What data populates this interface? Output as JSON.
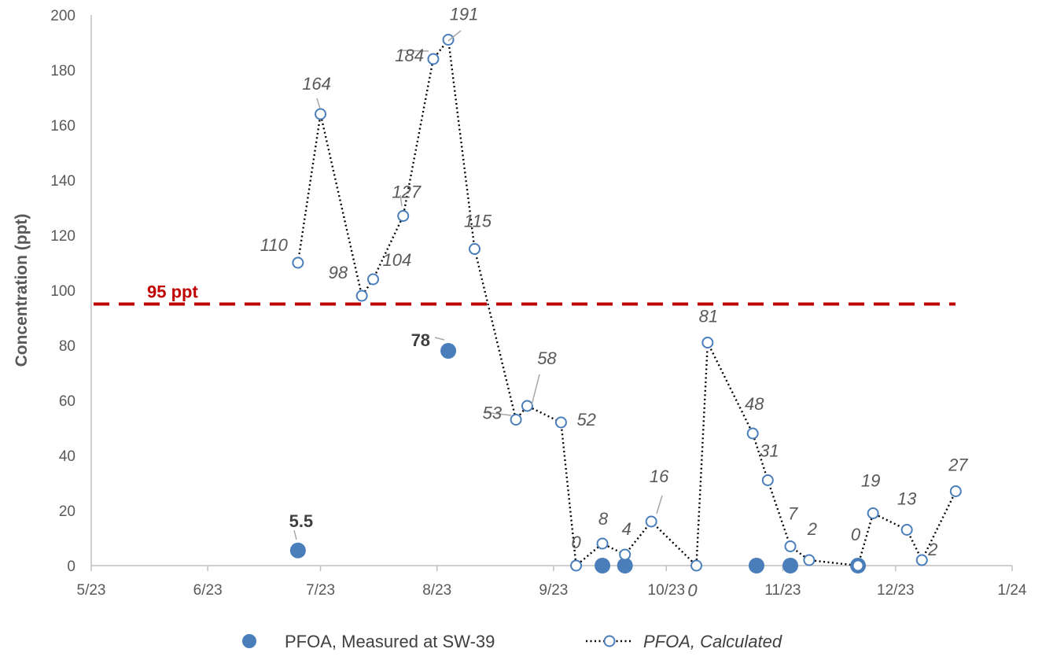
{
  "chart_data": {
    "type": "scatter",
    "ylabel": "Concentration (ppt)",
    "xlabel": "",
    "ylim": [
      0,
      200
    ],
    "yticks": [
      0,
      20,
      40,
      60,
      80,
      100,
      120,
      140,
      160,
      180,
      200
    ],
    "xlim": [
      "2023-05-01",
      "2024-01-01"
    ],
    "xticks": [
      {
        "date": "2023-05-01",
        "label": "5/23"
      },
      {
        "date": "2023-06-01",
        "label": "6/23"
      },
      {
        "date": "2023-07-01",
        "label": "7/23"
      },
      {
        "date": "2023-08-01",
        "label": "8/23"
      },
      {
        "date": "2023-09-01",
        "label": "9/23"
      },
      {
        "date": "2023-10-01",
        "label": "10/23"
      },
      {
        "date": "2023-11-01",
        "label": "11/23"
      },
      {
        "date": "2023-12-01",
        "label": "12/23"
      },
      {
        "date": "2024-01-01",
        "label": "1/24"
      }
    ],
    "grid": false,
    "legend_position": "bottom",
    "reference_line": {
      "value": 95,
      "label": "95 ppt",
      "color": "#c00000",
      "style": "dashed"
    },
    "series": [
      {
        "name": "PFOA, Measured at SW-39",
        "style": "filled-marker",
        "color": "#4a7ebb",
        "points": [
          {
            "x": "2023-06-25",
            "y": 5.5,
            "label": "5.5"
          },
          {
            "x": "2023-08-04",
            "y": 78,
            "label": "78"
          },
          {
            "x": "2023-09-14",
            "y": 0,
            "label": ""
          },
          {
            "x": "2023-09-20",
            "y": 0,
            "label": ""
          },
          {
            "x": "2023-10-25",
            "y": 0,
            "label": ""
          },
          {
            "x": "2023-11-03",
            "y": 0,
            "label": ""
          },
          {
            "x": "2023-11-21",
            "y": 0,
            "label": ""
          }
        ]
      },
      {
        "name": "PFOA, Calculated",
        "style": "dotted-line-open-marker",
        "color": "#4a7ebb",
        "line_color": "#000000",
        "points": [
          {
            "x": "2023-06-25",
            "y": 110,
            "label": "110"
          },
          {
            "x": "2023-07-01",
            "y": 164,
            "label": "164"
          },
          {
            "x": "2023-07-12",
            "y": 98,
            "label": "98"
          },
          {
            "x": "2023-07-15",
            "y": 104,
            "label": "104"
          },
          {
            "x": "2023-07-23",
            "y": 127,
            "label": "127"
          },
          {
            "x": "2023-07-31",
            "y": 184,
            "label": "184"
          },
          {
            "x": "2023-08-04",
            "y": 191,
            "label": "191"
          },
          {
            "x": "2023-08-11",
            "y": 115,
            "label": "115"
          },
          {
            "x": "2023-08-22",
            "y": 53,
            "label": "53"
          },
          {
            "x": "2023-08-25",
            "y": 58,
            "label": "58"
          },
          {
            "x": "2023-09-03",
            "y": 52,
            "label": "52"
          },
          {
            "x": "2023-09-07",
            "y": 0,
            "label": "0"
          },
          {
            "x": "2023-09-14",
            "y": 8,
            "label": "8"
          },
          {
            "x": "2023-09-20",
            "y": 4,
            "label": "4"
          },
          {
            "x": "2023-09-27",
            "y": 16,
            "label": "16"
          },
          {
            "x": "2023-10-09",
            "y": 0,
            "label": "0"
          },
          {
            "x": "2023-10-12",
            "y": 81,
            "label": "81"
          },
          {
            "x": "2023-10-24",
            "y": 48,
            "label": "48"
          },
          {
            "x": "2023-10-28",
            "y": 31,
            "label": "31"
          },
          {
            "x": "2023-11-03",
            "y": 7,
            "label": "7"
          },
          {
            "x": "2023-11-08",
            "y": 2,
            "label": "2"
          },
          {
            "x": "2023-11-21",
            "y": 0,
            "label": "0"
          },
          {
            "x": "2023-11-25",
            "y": 19,
            "label": "19"
          },
          {
            "x": "2023-12-04",
            "y": 13,
            "label": "13"
          },
          {
            "x": "2023-12-08",
            "y": 2,
            "label": "2"
          },
          {
            "x": "2023-12-17",
            "y": 27,
            "label": "27"
          }
        ]
      }
    ]
  }
}
